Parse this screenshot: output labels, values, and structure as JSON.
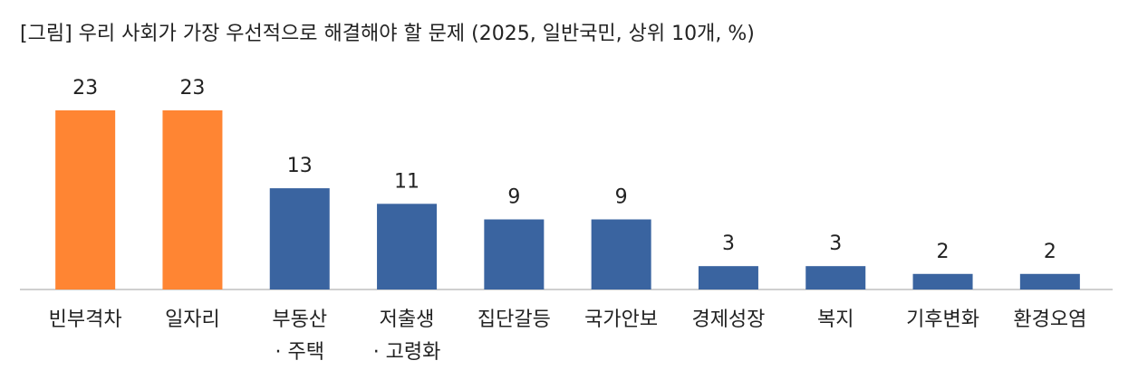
{
  "chart_data": {
    "type": "bar",
    "title": "[그림] 우리 사회가 가장 우선적으로 해결해야 할 문제 (2025, 일반국민, 상위 10개, %)",
    "categories": [
      "빈부격차",
      "일자리",
      "부동산\n· 주택",
      "저출생\n· 고령화",
      "집단갈등",
      "국가안보",
      "경제성장",
      "복지",
      "기후변화",
      "환경오염"
    ],
    "values": [
      23,
      23,
      13,
      11,
      9,
      9,
      3,
      3,
      2,
      2
    ],
    "colors": [
      "#ff8533",
      "#ff8533",
      "#3a64a0",
      "#3a64a0",
      "#3a64a0",
      "#3a64a0",
      "#3a64a0",
      "#3a64a0",
      "#3a64a0",
      "#3a64a0"
    ]
  }
}
